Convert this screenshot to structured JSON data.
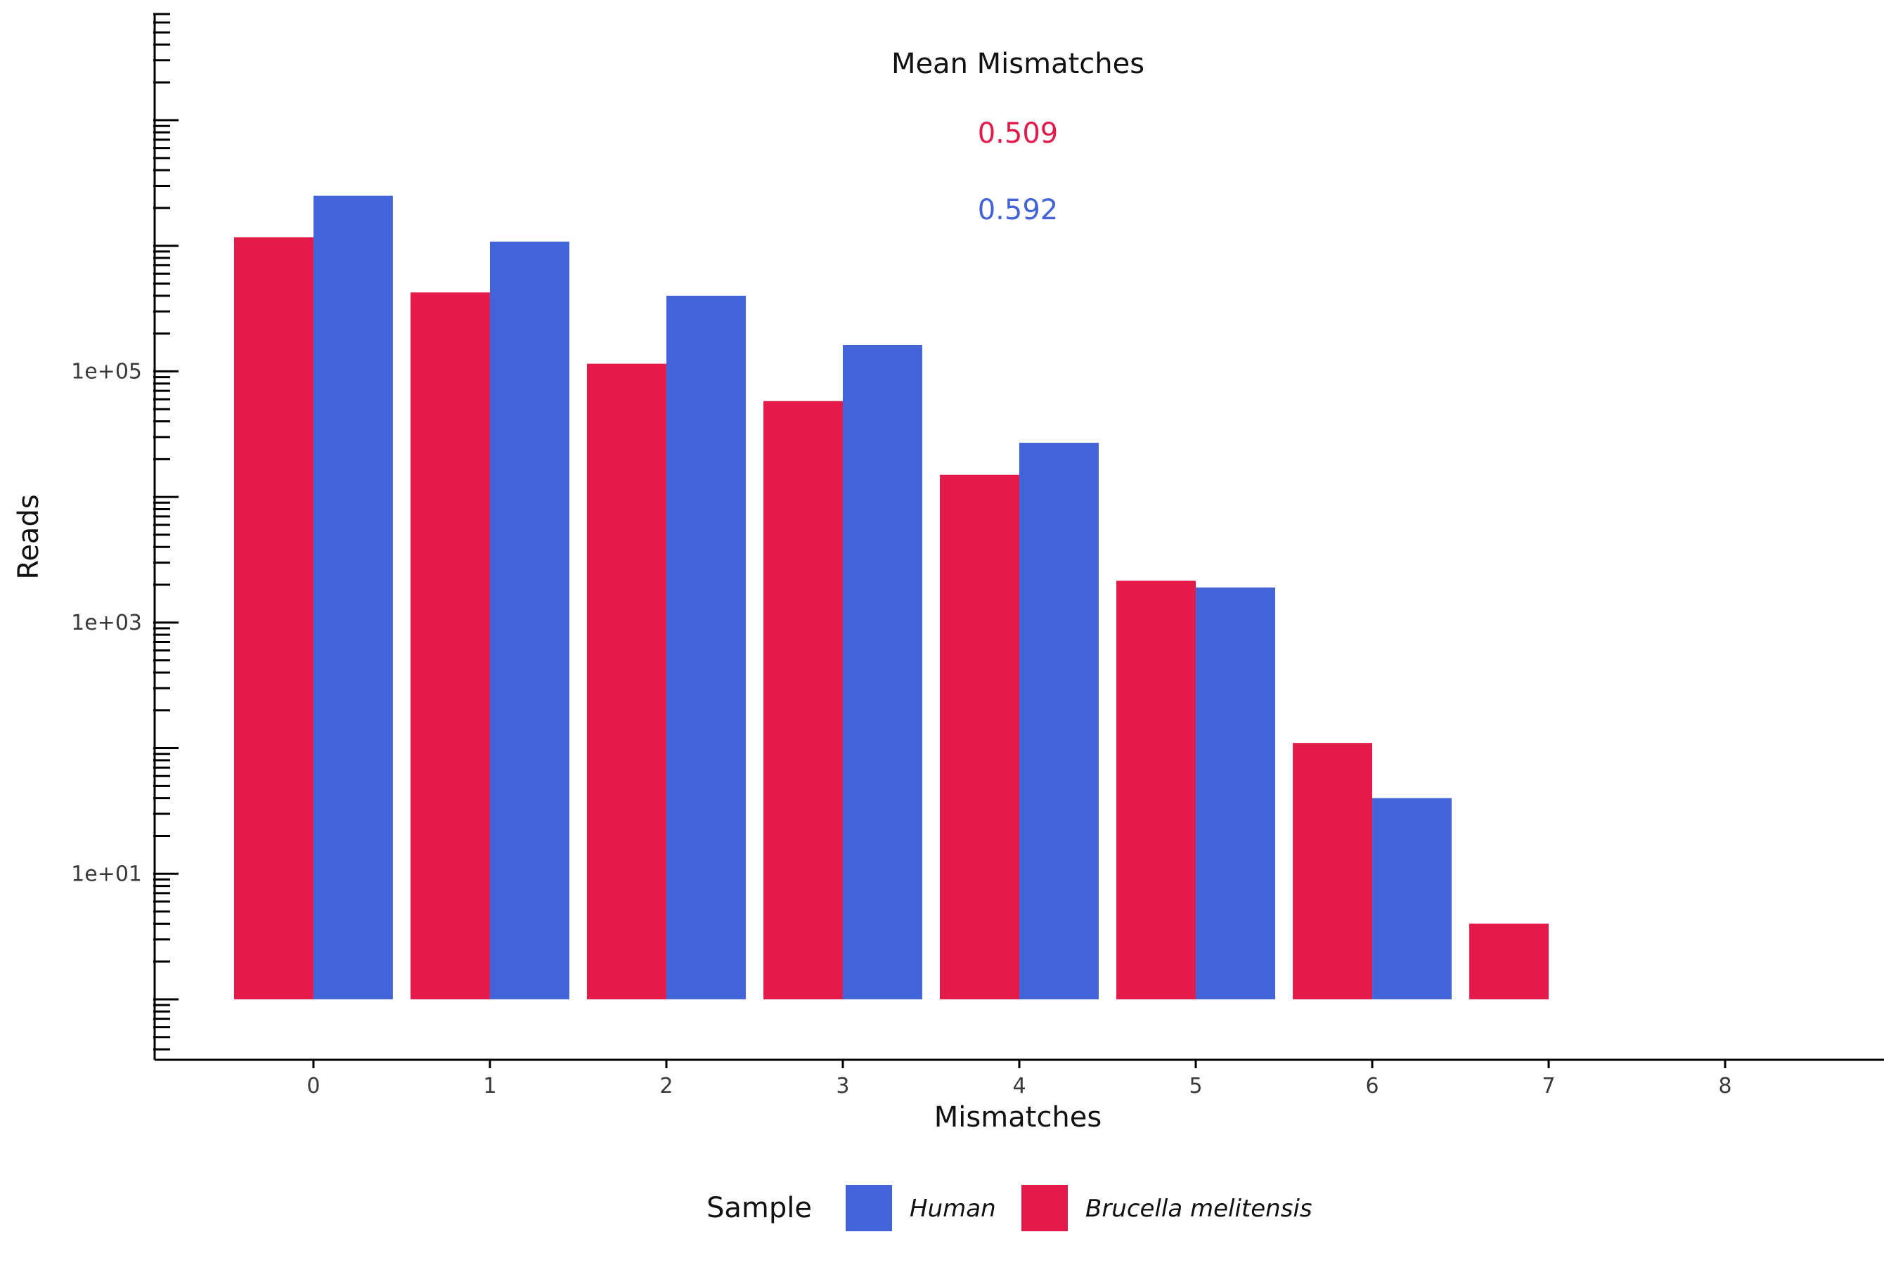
{
  "chart_data": {
    "type": "bar",
    "xlabel": "Mismatches",
    "ylabel": "Reads",
    "x_ticks": [
      "0",
      "1",
      "2",
      "3",
      "4",
      "5",
      "6",
      "7",
      "8"
    ],
    "x_range": [
      -0.9,
      8.9
    ],
    "y_scale": "log10",
    "y_range": [
      0.33,
      70000000
    ],
    "y_tick_labels": [
      {
        "value": 10,
        "label": "1e+01"
      },
      {
        "value": 1000,
        "label": "1e+03"
      },
      {
        "value": 100000,
        "label": "1e+05"
      }
    ],
    "grid": false,
    "series": [
      {
        "name": "Brucella melitensis",
        "color": "#e31a4a",
        "x": [
          0,
          1,
          2,
          3,
          4,
          5,
          6,
          7
        ],
        "values": [
          1170000,
          425000,
          115000,
          58000,
          15000,
          2150,
          110,
          4
        ]
      },
      {
        "name": "Human",
        "color": "#4363d8",
        "x": [
          0,
          1,
          2,
          3,
          4,
          5,
          6
        ],
        "values": [
          2500000,
          1080000,
          400000,
          162000,
          27000,
          1900,
          40
        ]
      }
    ],
    "annotation": {
      "title": "Mean Mismatches",
      "values": [
        {
          "text": "0.509",
          "color": "#e31a4a"
        },
        {
          "text": "0.592",
          "color": "#4363d8"
        }
      ]
    },
    "legend": {
      "title": "Sample",
      "position": "bottom",
      "entries": [
        {
          "label": "Human",
          "color": "#4363d8"
        },
        {
          "label": "Brucella melitensis",
          "color": "#e31a4a"
        }
      ]
    }
  }
}
